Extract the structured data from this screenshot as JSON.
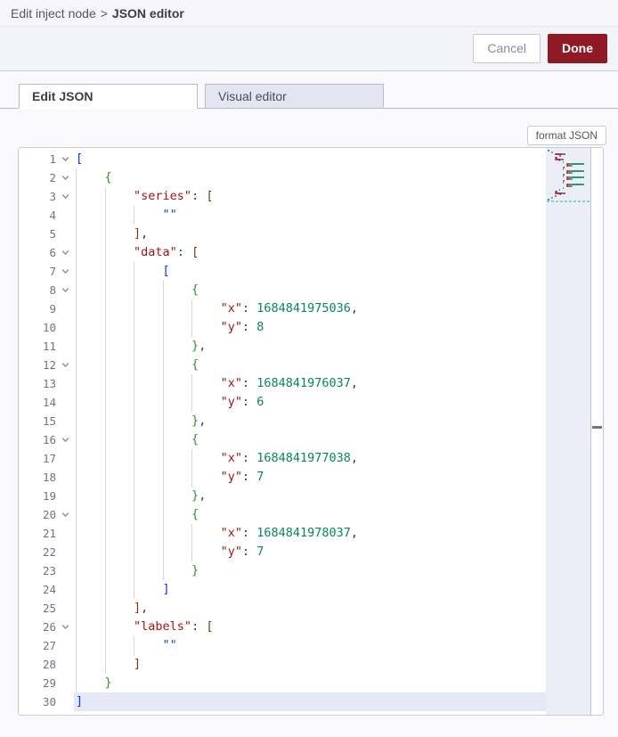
{
  "breadcrumb": {
    "path": "Edit inject node",
    "separator": ">",
    "current": "JSON editor"
  },
  "toolbar": {
    "cancel_label": "Cancel",
    "done_label": "Done"
  },
  "tabs": [
    {
      "label": "Edit JSON",
      "active": true
    },
    {
      "label": "Visual editor",
      "active": false
    }
  ],
  "format_button_label": "format JSON",
  "editor": {
    "language": "json",
    "active_line": 30,
    "colors": {
      "key": "#a31515",
      "str": "#0451a5",
      "num": "#098658",
      "delim": "#3b3b3b",
      "b0": "#0431fa",
      "b1": "#319331",
      "b2": "#7b3814"
    },
    "lines": [
      {
        "n": 1,
        "fold": true,
        "indent": 0,
        "tokens": [
          [
            "b0",
            "["
          ]
        ]
      },
      {
        "n": 2,
        "fold": true,
        "indent": 1,
        "tokens": [
          [
            "b1",
            "{"
          ]
        ]
      },
      {
        "n": 3,
        "fold": true,
        "indent": 2,
        "tokens": [
          [
            "key",
            "\"series\""
          ],
          [
            "delim",
            ": "
          ],
          [
            "b2",
            "["
          ]
        ]
      },
      {
        "n": 4,
        "fold": false,
        "indent": 3,
        "tokens": [
          [
            "str",
            "\"\""
          ]
        ]
      },
      {
        "n": 5,
        "fold": false,
        "indent": 2,
        "tokens": [
          [
            "b2",
            "]"
          ],
          [
            "delim",
            ","
          ]
        ]
      },
      {
        "n": 6,
        "fold": true,
        "indent": 2,
        "tokens": [
          [
            "key",
            "\"data\""
          ],
          [
            "delim",
            ": "
          ],
          [
            "b2",
            "["
          ]
        ]
      },
      {
        "n": 7,
        "fold": true,
        "indent": 3,
        "tokens": [
          [
            "b0",
            "["
          ]
        ]
      },
      {
        "n": 8,
        "fold": true,
        "indent": 4,
        "tokens": [
          [
            "b1",
            "{"
          ]
        ]
      },
      {
        "n": 9,
        "fold": false,
        "indent": 5,
        "tokens": [
          [
            "key",
            "\"x\""
          ],
          [
            "delim",
            ": "
          ],
          [
            "num",
            "1684841975036"
          ],
          [
            "delim",
            ","
          ]
        ]
      },
      {
        "n": 10,
        "fold": false,
        "indent": 5,
        "tokens": [
          [
            "key",
            "\"y\""
          ],
          [
            "delim",
            ": "
          ],
          [
            "num",
            "8"
          ]
        ]
      },
      {
        "n": 11,
        "fold": false,
        "indent": 4,
        "tokens": [
          [
            "b1",
            "}"
          ],
          [
            "delim",
            ","
          ]
        ]
      },
      {
        "n": 12,
        "fold": true,
        "indent": 4,
        "tokens": [
          [
            "b1",
            "{"
          ]
        ]
      },
      {
        "n": 13,
        "fold": false,
        "indent": 5,
        "tokens": [
          [
            "key",
            "\"x\""
          ],
          [
            "delim",
            ": "
          ],
          [
            "num",
            "1684841976037"
          ],
          [
            "delim",
            ","
          ]
        ]
      },
      {
        "n": 14,
        "fold": false,
        "indent": 5,
        "tokens": [
          [
            "key",
            "\"y\""
          ],
          [
            "delim",
            ": "
          ],
          [
            "num",
            "6"
          ]
        ]
      },
      {
        "n": 15,
        "fold": false,
        "indent": 4,
        "tokens": [
          [
            "b1",
            "}"
          ],
          [
            "delim",
            ","
          ]
        ]
      },
      {
        "n": 16,
        "fold": true,
        "indent": 4,
        "tokens": [
          [
            "b1",
            "{"
          ]
        ]
      },
      {
        "n": 17,
        "fold": false,
        "indent": 5,
        "tokens": [
          [
            "key",
            "\"x\""
          ],
          [
            "delim",
            ": "
          ],
          [
            "num",
            "1684841977038"
          ],
          [
            "delim",
            ","
          ]
        ]
      },
      {
        "n": 18,
        "fold": false,
        "indent": 5,
        "tokens": [
          [
            "key",
            "\"y\""
          ],
          [
            "delim",
            ": "
          ],
          [
            "num",
            "7"
          ]
        ]
      },
      {
        "n": 19,
        "fold": false,
        "indent": 4,
        "tokens": [
          [
            "b1",
            "}"
          ],
          [
            "delim",
            ","
          ]
        ]
      },
      {
        "n": 20,
        "fold": true,
        "indent": 4,
        "tokens": [
          [
            "b1",
            "{"
          ]
        ]
      },
      {
        "n": 21,
        "fold": false,
        "indent": 5,
        "tokens": [
          [
            "key",
            "\"x\""
          ],
          [
            "delim",
            ": "
          ],
          [
            "num",
            "1684841978037"
          ],
          [
            "delim",
            ","
          ]
        ]
      },
      {
        "n": 22,
        "fold": false,
        "indent": 5,
        "tokens": [
          [
            "key",
            "\"y\""
          ],
          [
            "delim",
            ": "
          ],
          [
            "num",
            "7"
          ]
        ]
      },
      {
        "n": 23,
        "fold": false,
        "indent": 4,
        "tokens": [
          [
            "b1",
            "}"
          ]
        ]
      },
      {
        "n": 24,
        "fold": false,
        "indent": 3,
        "tokens": [
          [
            "b0",
            "]"
          ]
        ]
      },
      {
        "n": 25,
        "fold": false,
        "indent": 2,
        "tokens": [
          [
            "b2",
            "]"
          ],
          [
            "delim",
            ","
          ]
        ]
      },
      {
        "n": 26,
        "fold": true,
        "indent": 2,
        "tokens": [
          [
            "key",
            "\"labels\""
          ],
          [
            "delim",
            ": "
          ],
          [
            "b2",
            "["
          ]
        ]
      },
      {
        "n": 27,
        "fold": false,
        "indent": 3,
        "tokens": [
          [
            "str",
            "\"\""
          ]
        ]
      },
      {
        "n": 28,
        "fold": false,
        "indent": 2,
        "tokens": [
          [
            "b2",
            "]"
          ]
        ]
      },
      {
        "n": 29,
        "fold": false,
        "indent": 1,
        "tokens": [
          [
            "b1",
            "}"
          ]
        ]
      },
      {
        "n": 30,
        "fold": false,
        "indent": 0,
        "tokens": [
          [
            "b0",
            "]"
          ]
        ]
      }
    ]
  }
}
